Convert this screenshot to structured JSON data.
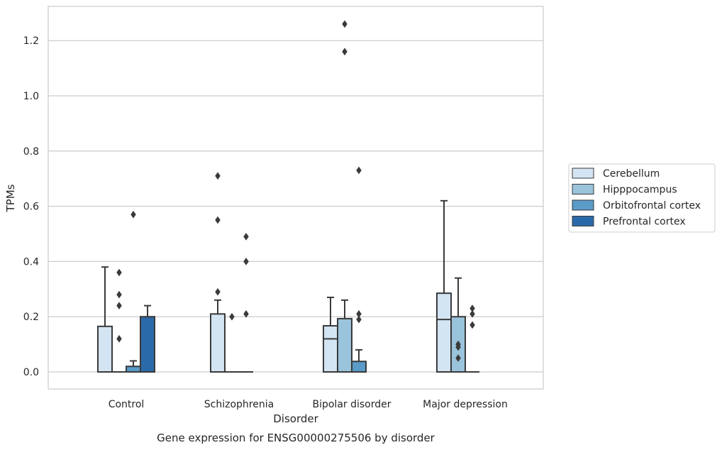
{
  "caption": "Gene expression for ENSG00000275506 by disorder",
  "chart_data": {
    "type": "box",
    "xlabel": "Disorder",
    "ylabel": "TPMs",
    "ylim": [
      -0.06,
      1.32
    ],
    "yticks": [
      0.0,
      0.2,
      0.4,
      0.6,
      0.8,
      1.0,
      1.2
    ],
    "ytick_labels": [
      "0.0",
      "0.2",
      "0.4",
      "0.6",
      "0.8",
      "1.0",
      "1.2"
    ],
    "grid": "horizontal",
    "legend_position": "right",
    "categories": [
      "Control",
      "Schizophrenia",
      "Bipolar disorder",
      "Major depression"
    ],
    "series": [
      {
        "name": "Cerebellum",
        "color": "#d3e4f3",
        "boxes": [
          {
            "q1": 0.0,
            "median": 0.0,
            "q3": 0.165,
            "whisker_low": 0.0,
            "whisker_high": 0.38,
            "outliers": []
          },
          {
            "q1": 0.0,
            "median": 0.0,
            "q3": 0.21,
            "whisker_low": 0.0,
            "whisker_high": 0.26,
            "outliers": [
              0.71,
              0.55,
              0.29
            ]
          },
          {
            "q1": 0.0,
            "median": 0.12,
            "q3": 0.167,
            "whisker_low": 0.0,
            "whisker_high": 0.27,
            "outliers": []
          },
          {
            "q1": 0.0,
            "median": 0.19,
            "q3": 0.285,
            "whisker_low": 0.0,
            "whisker_high": 0.62,
            "outliers": []
          }
        ]
      },
      {
        "name": "Hipppocampus",
        "color": "#9ac3dc",
        "boxes": [
          {
            "q1": 0.0,
            "median": 0.0,
            "q3": 0.0,
            "whisker_low": 0.0,
            "whisker_high": 0.0,
            "outliers": [
              0.36,
              0.28,
              0.24,
              0.12
            ]
          },
          {
            "q1": 0.0,
            "median": 0.0,
            "q3": 0.0,
            "whisker_low": 0.0,
            "whisker_high": 0.0,
            "outliers": [
              0.2
            ]
          },
          {
            "q1": 0.0,
            "median": 0.0,
            "q3": 0.193,
            "whisker_low": 0.0,
            "whisker_high": 0.26,
            "outliers": [
              1.26,
              1.16
            ]
          },
          {
            "q1": 0.0,
            "median": 0.0,
            "q3": 0.2,
            "whisker_low": 0.0,
            "whisker_high": 0.34,
            "outliers": [
              0.1,
              0.09,
              0.05
            ]
          }
        ]
      },
      {
        "name": "Orbitofrontal cortex",
        "color": "#5a9bc8",
        "boxes": [
          {
            "q1": 0.0,
            "median": 0.0,
            "q3": 0.02,
            "whisker_low": 0.0,
            "whisker_high": 0.04,
            "outliers": [
              0.57
            ]
          },
          {
            "q1": 0.0,
            "median": 0.0,
            "q3": 0.0,
            "whisker_low": 0.0,
            "whisker_high": 0.0,
            "outliers": [
              0.49,
              0.4,
              0.21
            ]
          },
          {
            "q1": 0.0,
            "median": 0.0,
            "q3": 0.038,
            "whisker_low": 0.0,
            "whisker_high": 0.08,
            "outliers": [
              0.73,
              0.21,
              0.19
            ]
          },
          {
            "q1": 0.0,
            "median": 0.0,
            "q3": 0.0,
            "whisker_low": 0.0,
            "whisker_high": 0.0,
            "outliers": [
              0.23,
              0.21,
              0.17
            ]
          }
        ]
      },
      {
        "name": "Prefrontal cortex",
        "color": "#2b6aa8",
        "boxes": [
          {
            "q1": 0.0,
            "median": 0.0,
            "q3": 0.2,
            "whisker_low": 0.0,
            "whisker_high": 0.24,
            "outliers": []
          },
          null,
          null,
          null
        ]
      }
    ]
  }
}
